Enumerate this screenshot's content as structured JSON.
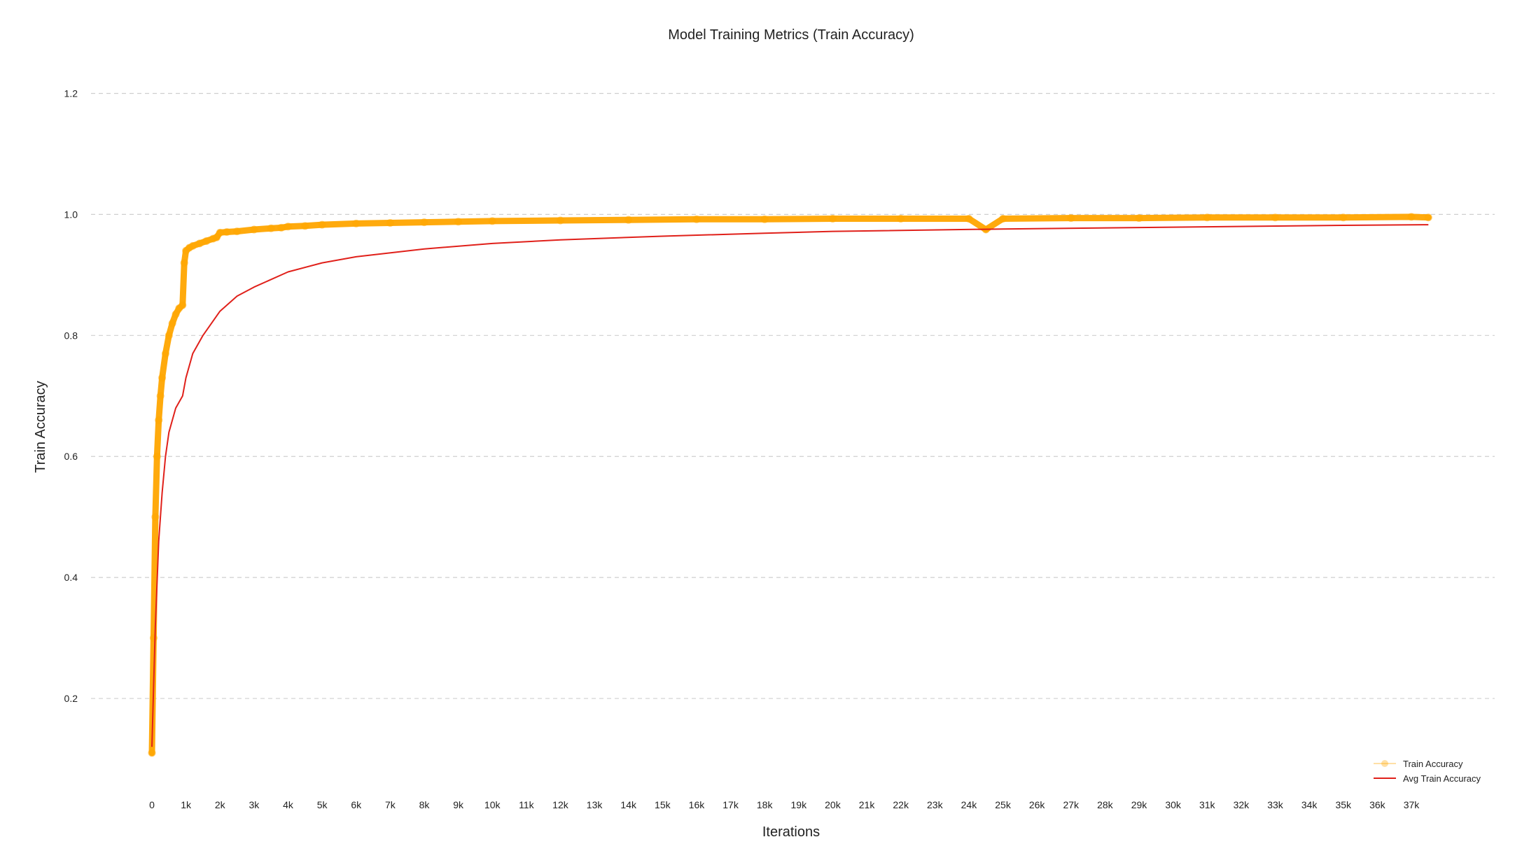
{
  "chart_data": {
    "type": "line",
    "title": "Model Training Metrics (Train Accuracy)",
    "xlabel": "Iterations",
    "ylabel": "Train Accuracy",
    "xlim": [
      -500,
      39000
    ],
    "ylim": [
      0.04,
      1.26
    ],
    "grid": "horizontal dashed",
    "legend_position": "lower-right",
    "x_ticks": [
      {
        "value": 0,
        "label": "0"
      },
      {
        "value": 1000,
        "label": "1k"
      },
      {
        "value": 2000,
        "label": "2k"
      },
      {
        "value": 3000,
        "label": "3k"
      },
      {
        "value": 4000,
        "label": "4k"
      },
      {
        "value": 5000,
        "label": "5k"
      },
      {
        "value": 6000,
        "label": "6k"
      },
      {
        "value": 7000,
        "label": "7k"
      },
      {
        "value": 8000,
        "label": "8k"
      },
      {
        "value": 9000,
        "label": "9k"
      },
      {
        "value": 10000,
        "label": "10k"
      },
      {
        "value": 11000,
        "label": "11k"
      },
      {
        "value": 12000,
        "label": "12k"
      },
      {
        "value": 13000,
        "label": "13k"
      },
      {
        "value": 14000,
        "label": "14k"
      },
      {
        "value": 15000,
        "label": "15k"
      },
      {
        "value": 16000,
        "label": "16k"
      },
      {
        "value": 17000,
        "label": "17k"
      },
      {
        "value": 18000,
        "label": "18k"
      },
      {
        "value": 19000,
        "label": "19k"
      },
      {
        "value": 20000,
        "label": "20k"
      },
      {
        "value": 21000,
        "label": "21k"
      },
      {
        "value": 22000,
        "label": "22k"
      },
      {
        "value": 23000,
        "label": "23k"
      },
      {
        "value": 24000,
        "label": "24k"
      },
      {
        "value": 25000,
        "label": "25k"
      },
      {
        "value": 26000,
        "label": "26k"
      },
      {
        "value": 27000,
        "label": "27k"
      },
      {
        "value": 28000,
        "label": "28k"
      },
      {
        "value": 29000,
        "label": "29k"
      },
      {
        "value": 30000,
        "label": "30k"
      },
      {
        "value": 31000,
        "label": "31k"
      },
      {
        "value": 32000,
        "label": "32k"
      },
      {
        "value": 33000,
        "label": "33k"
      },
      {
        "value": 34000,
        "label": "34k"
      },
      {
        "value": 35000,
        "label": "35k"
      },
      {
        "value": 36000,
        "label": "36k"
      },
      {
        "value": 37000,
        "label": "37k"
      }
    ],
    "y_ticks": [
      {
        "value": 0.2,
        "label": "0.2"
      },
      {
        "value": 0.4,
        "label": "0.4"
      },
      {
        "value": 0.6,
        "label": "0.6"
      },
      {
        "value": 0.8,
        "label": "0.8"
      },
      {
        "value": 1.0,
        "label": "1.0"
      },
      {
        "value": 1.2,
        "label": "1.2"
      }
    ],
    "series": [
      {
        "name": "Train Accuracy",
        "color": "#ffa500",
        "style": "line with circle markers",
        "x": [
          0,
          50,
          100,
          150,
          200,
          250,
          300,
          400,
          500,
          600,
          700,
          800,
          900,
          950,
          1000,
          1100,
          1200,
          1400,
          1600,
          1800,
          1900,
          2000,
          2200,
          2500,
          3000,
          3500,
          3800,
          4000,
          4500,
          5000,
          6000,
          7000,
          8000,
          9000,
          10000,
          12000,
          14000,
          16000,
          18000,
          20000,
          22000,
          24000,
          24500,
          25000,
          27000,
          29000,
          31000,
          33000,
          35000,
          37000,
          37500
        ],
        "y": [
          0.11,
          0.3,
          0.5,
          0.6,
          0.66,
          0.7,
          0.73,
          0.77,
          0.8,
          0.82,
          0.835,
          0.845,
          0.85,
          0.92,
          0.94,
          0.945,
          0.948,
          0.952,
          0.956,
          0.96,
          0.962,
          0.97,
          0.971,
          0.972,
          0.975,
          0.977,
          0.978,
          0.98,
          0.981,
          0.983,
          0.985,
          0.986,
          0.987,
          0.988,
          0.989,
          0.99,
          0.991,
          0.992,
          0.992,
          0.993,
          0.993,
          0.993,
          0.975,
          0.993,
          0.994,
          0.994,
          0.995,
          0.995,
          0.995,
          0.996,
          0.995
        ]
      },
      {
        "name": "Avg Train Accuracy",
        "color": "#e0201a",
        "style": "line",
        "x": [
          0,
          50,
          100,
          200,
          300,
          400,
          500,
          700,
          900,
          1000,
          1200,
          1500,
          2000,
          2500,
          3000,
          4000,
          5000,
          6000,
          8000,
          10000,
          12000,
          15000,
          18000,
          20000,
          25000,
          30000,
          35000,
          37500
        ],
        "y": [
          0.12,
          0.22,
          0.32,
          0.46,
          0.54,
          0.6,
          0.64,
          0.68,
          0.7,
          0.73,
          0.77,
          0.8,
          0.84,
          0.865,
          0.88,
          0.905,
          0.92,
          0.93,
          0.943,
          0.952,
          0.958,
          0.964,
          0.969,
          0.972,
          0.976,
          0.979,
          0.982,
          0.983
        ]
      }
    ]
  }
}
